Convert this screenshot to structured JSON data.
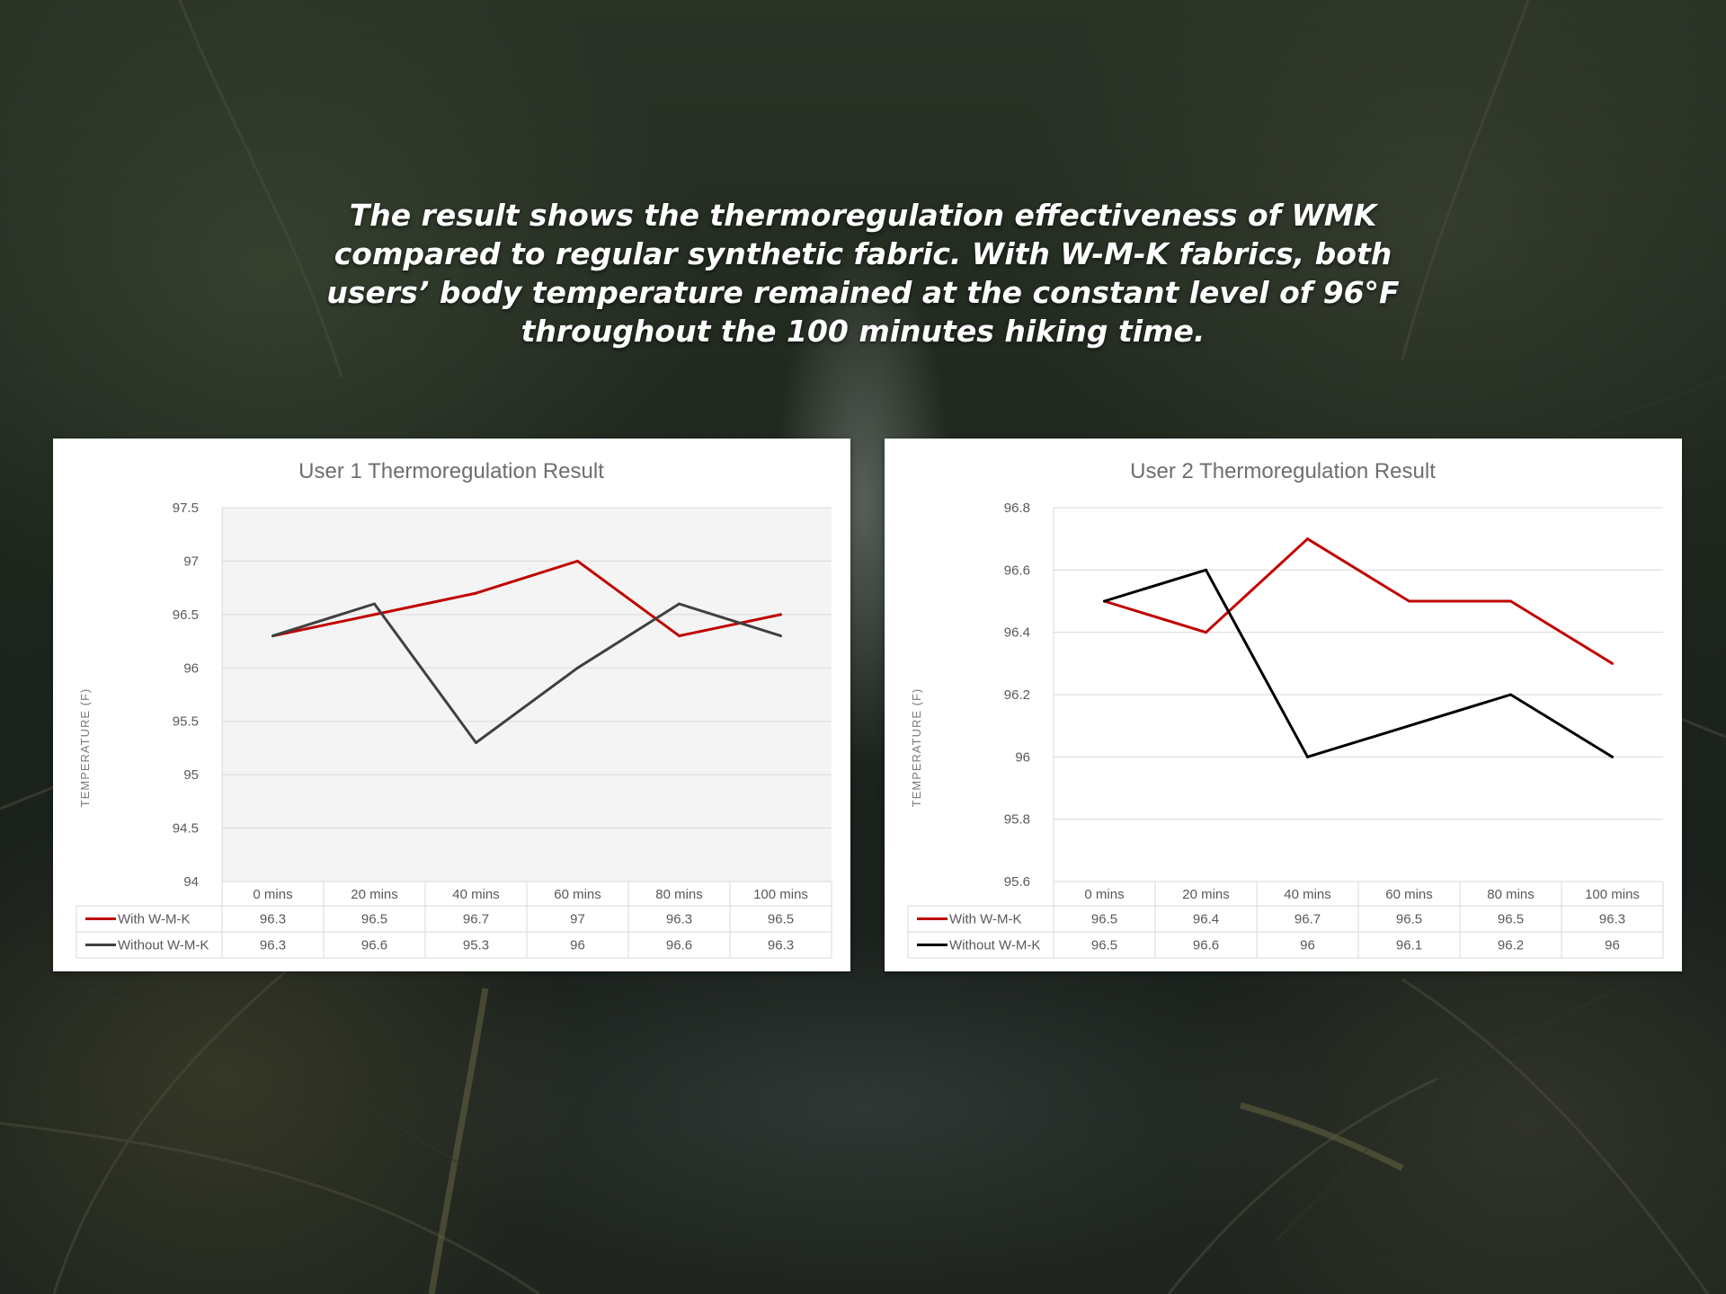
{
  "caption": "The result shows the thermoregulation effectiveness of WMK compared to regular synthetic fabric. With W-M-K fabrics, both users’ body temperature remained at the constant level of 96°F throughout the 100 minutes hiking time.",
  "colors": {
    "with": "#c00000",
    "without_user1": "#404040",
    "without_user2": "#000000"
  },
  "chart_data": [
    {
      "type": "line",
      "title": "User 1 Thermoregulation Result",
      "ylabel": "TEMPERATURE (F)",
      "xlabel": "",
      "categories": [
        "0 mins",
        "20 mins",
        "40 mins",
        "60 mins",
        "80 mins",
        "100 mins"
      ],
      "ylim": [
        94,
        97.5
      ],
      "yticks": [
        "94",
        "94.5",
        "95",
        "95.5",
        "96",
        "96.5",
        "97",
        "97.5"
      ],
      "grid": true,
      "legend": "data-table",
      "series": [
        {
          "name": "With W-M-K",
          "values": [
            96.3,
            96.5,
            96.7,
            97,
            96.3,
            96.5
          ],
          "labels": [
            "96.3",
            "96.5",
            "96.7",
            "97",
            "96.3",
            "96.5"
          ]
        },
        {
          "name": "Without W-M-K",
          "values": [
            96.3,
            96.6,
            95.3,
            96,
            96.6,
            96.3
          ],
          "labels": [
            "96.3",
            "96.6",
            "95.3",
            "96",
            "96.6",
            "96.3"
          ]
        }
      ]
    },
    {
      "type": "line",
      "title": "User 2 Thermoregulation Result",
      "ylabel": "TEMPERATURE (F)",
      "xlabel": "",
      "categories": [
        "0 mins",
        "20 mins",
        "40 mins",
        "60 mins",
        "80 mins",
        "100 mins"
      ],
      "ylim": [
        95.6,
        96.8
      ],
      "yticks": [
        "95.6",
        "95.8",
        "96",
        "96.2",
        "96.4",
        "96.6",
        "96.8"
      ],
      "grid": true,
      "legend": "data-table",
      "series": [
        {
          "name": "With W-M-K",
          "values": [
            96.5,
            96.4,
            96.7,
            96.5,
            96.5,
            96.3
          ],
          "labels": [
            "96.5",
            "96.4",
            "96.7",
            "96.5",
            "96.5",
            "96.3"
          ]
        },
        {
          "name": "Without W-M-K",
          "values": [
            96.5,
            96.6,
            96,
            96.1,
            96.2,
            96
          ],
          "labels": [
            "96.5",
            "96.6",
            "96",
            "96.1",
            "96.2",
            "96"
          ]
        }
      ]
    }
  ]
}
